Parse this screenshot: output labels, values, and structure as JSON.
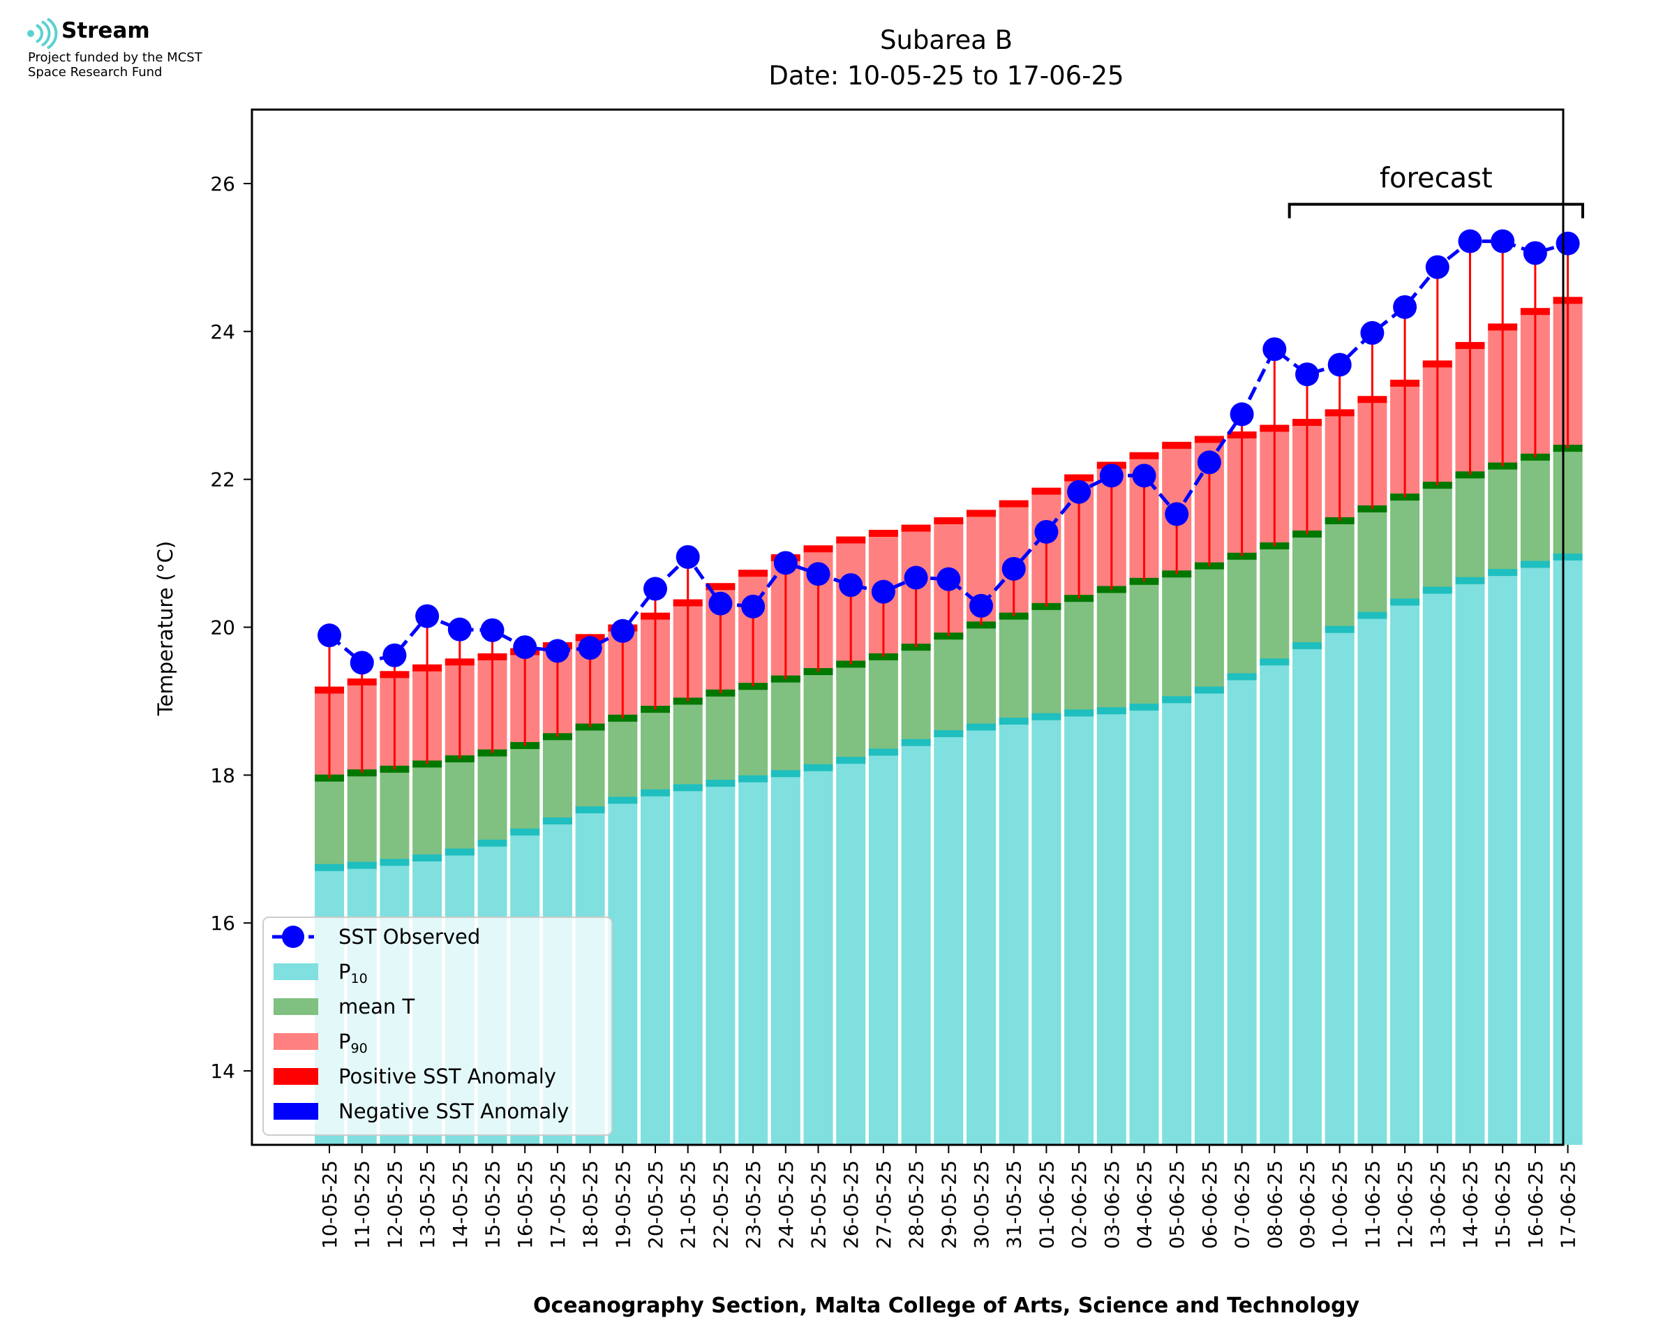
{
  "logo": {
    "name": "Stream",
    "line1": "Project funded by the MCST",
    "line2": "Space Research Fund"
  },
  "chart_data": {
    "type": "bar",
    "title": "Subarea B",
    "subtitle": "Date: 10-05-25 to 17-06-25",
    "xlabel": "Oceanography Section, Malta College of Arts, Science and Technology",
    "ylabel": "Temperature (°C)",
    "ylim": [
      13,
      27
    ],
    "yticks": [
      14,
      16,
      18,
      20,
      22,
      24,
      26
    ],
    "grid": false,
    "legend_position": "lower-left",
    "annotation": "forecast",
    "forecast_range": [
      "09-06-25",
      "17-06-25"
    ],
    "categories": [
      "10-05-25",
      "11-05-25",
      "12-05-25",
      "13-05-25",
      "14-05-25",
      "15-05-25",
      "16-05-25",
      "17-05-25",
      "18-05-25",
      "19-05-25",
      "20-05-25",
      "21-05-25",
      "22-05-25",
      "23-05-25",
      "24-05-25",
      "25-05-25",
      "26-05-25",
      "27-05-25",
      "28-05-25",
      "29-05-25",
      "30-05-25",
      "31-05-25",
      "01-06-25",
      "02-06-25",
      "03-06-25",
      "04-06-25",
      "05-06-25",
      "06-06-25",
      "07-06-25",
      "08-06-25",
      "09-06-25",
      "10-06-25",
      "11-06-25",
      "12-06-25",
      "13-06-25",
      "14-06-25",
      "15-06-25",
      "16-06-25",
      "17-06-25"
    ],
    "series": [
      {
        "name": "SST Observed",
        "values": [
          19.89,
          19.52,
          19.62,
          20.15,
          19.97,
          19.96,
          19.73,
          19.68,
          19.72,
          19.95,
          20.52,
          20.95,
          20.32,
          20.28,
          20.87,
          20.72,
          20.57,
          20.48,
          20.67,
          20.65,
          20.29,
          20.79,
          21.29,
          21.83,
          22.05,
          22.05,
          21.53,
          22.23,
          22.88,
          23.76,
          23.42,
          23.55,
          23.98,
          24.33,
          24.87,
          25.22,
          25.22,
          25.06,
          25.19
        ]
      },
      {
        "name": "P10",
        "values": [
          16.75,
          16.78,
          16.82,
          16.88,
          16.96,
          17.08,
          17.23,
          17.38,
          17.53,
          17.66,
          17.76,
          17.83,
          17.89,
          17.95,
          18.02,
          18.1,
          18.2,
          18.31,
          18.44,
          18.56,
          18.65,
          18.73,
          18.79,
          18.84,
          18.87,
          18.92,
          19.02,
          19.15,
          19.33,
          19.53,
          19.75,
          19.97,
          20.16,
          20.34,
          20.5,
          20.63,
          20.74,
          20.85,
          20.95
        ]
      },
      {
        "name": "mean T",
        "values": [
          17.96,
          18.03,
          18.08,
          18.15,
          18.22,
          18.3,
          18.4,
          18.52,
          18.65,
          18.77,
          18.89,
          19.0,
          19.11,
          19.2,
          19.3,
          19.4,
          19.5,
          19.6,
          19.73,
          19.88,
          20.03,
          20.15,
          20.28,
          20.39,
          20.51,
          20.62,
          20.72,
          20.83,
          20.96,
          21.1,
          21.26,
          21.44,
          21.6,
          21.76,
          21.92,
          22.06,
          22.18,
          22.3,
          22.42
        ]
      },
      {
        "name": "P90",
        "values": [
          19.15,
          19.26,
          19.36,
          19.45,
          19.53,
          19.6,
          19.67,
          19.75,
          19.86,
          19.99,
          20.15,
          20.33,
          20.55,
          20.73,
          20.94,
          21.06,
          21.18,
          21.27,
          21.34,
          21.44,
          21.54,
          21.67,
          21.84,
          22.02,
          22.19,
          22.32,
          22.46,
          22.54,
          22.6,
          22.69,
          22.77,
          22.9,
          23.08,
          23.3,
          23.56,
          23.81,
          24.06,
          24.27,
          24.42
        ]
      }
    ],
    "legend": [
      {
        "label": "SST Observed",
        "color": "#0000ff"
      },
      {
        "label": "P",
        "sub": "10",
        "color": "#80dfdf"
      },
      {
        "label": "mean T",
        "color": "#80c080"
      },
      {
        "label": "P",
        "sub": "90",
        "color": "#ff8080"
      },
      {
        "label": "Positive SST Anomaly",
        "color": "#ff0000"
      },
      {
        "label": "Negative SST Anomaly",
        "color": "#0000ff"
      }
    ],
    "colors": {
      "p10_fill": "#80dfdf",
      "p10_line": "#1fbfbf",
      "mean_fill": "#80c080",
      "mean_line": "#007800",
      "p90_fill": "#ff8080",
      "p90_line": "#ff0000",
      "observed": "#0000ff",
      "pos_anomaly": "#ff0000",
      "neg_anomaly": "#0000ff"
    }
  }
}
